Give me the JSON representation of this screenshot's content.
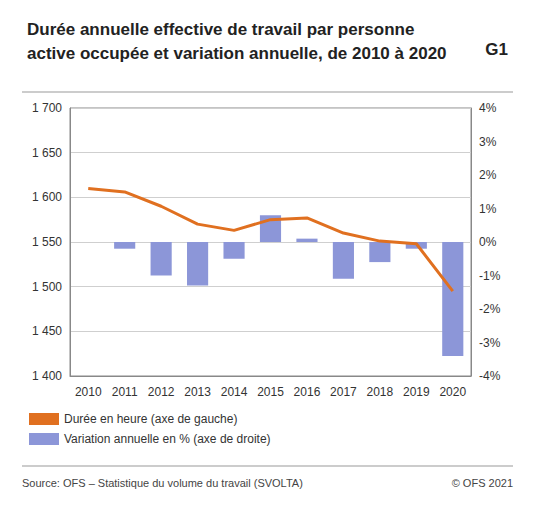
{
  "chart_data": {
    "type": "bar",
    "title": "Durée annuelle effective de travail par personne\nactive occupée et variation annuelle, de 2010 à 2020",
    "chart_id": "G1",
    "source": "Source: OFS – Statistique du volume du travail (SVOLTA)",
    "copyright": "© OFS 2021",
    "categories": [
      "2010",
      "2011",
      "2012",
      "2013",
      "2014",
      "2015",
      "2016",
      "2017",
      "2018",
      "2019",
      "2020"
    ],
    "series": [
      {
        "name": "Durée en heure (axe de gauche)",
        "type": "line",
        "color": "#e07020",
        "values": [
          1610,
          1606,
          1590,
          1570,
          1563,
          1575,
          1577,
          1560,
          1551,
          1548,
          1495
        ]
      },
      {
        "name": "Variation annuelle en % (axe de droite)",
        "type": "bar",
        "color": "#8c96d8",
        "axis": "y2",
        "values": [
          null,
          -0.2,
          -1.0,
          -1.3,
          -0.5,
          0.8,
          0.1,
          -1.1,
          -0.6,
          -0.2,
          -3.4
        ]
      }
    ],
    "ylim": [
      1400,
      1700
    ],
    "yticks": [
      {
        "value": 1400,
        "label": "1 400"
      },
      {
        "value": 1450,
        "label": "1 450"
      },
      {
        "value": 1500,
        "label": "1 500"
      },
      {
        "value": 1550,
        "label": "1 550"
      },
      {
        "value": 1600,
        "label": "1 600"
      },
      {
        "value": 1650,
        "label": "1 650"
      },
      {
        "value": 1700,
        "label": "1 700"
      }
    ],
    "y2lim": [
      -4,
      4
    ],
    "y2ticks": [
      {
        "value": -4,
        "label": "-4%"
      },
      {
        "value": -3,
        "label": "-3%"
      },
      {
        "value": -2,
        "label": "-2%"
      },
      {
        "value": -1,
        "label": "-1%"
      },
      {
        "value": 0,
        "label": "0%"
      },
      {
        "value": 1,
        "label": "1%"
      },
      {
        "value": 2,
        "label": "2%"
      },
      {
        "value": 3,
        "label": "3%"
      },
      {
        "value": 4,
        "label": "4%"
      }
    ],
    "grid": true,
    "legend": "bottom-left"
  }
}
